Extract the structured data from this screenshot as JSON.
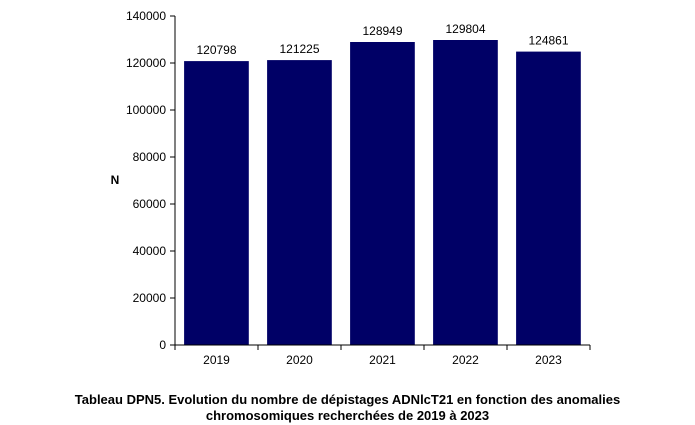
{
  "chart_data": {
    "type": "bar",
    "categories": [
      "2019",
      "2020",
      "2021",
      "2022",
      "2023"
    ],
    "values": [
      120798,
      121225,
      128949,
      129804,
      124861
    ],
    "data_labels": [
      "120798",
      "121225",
      "128949",
      "129804",
      "124861"
    ],
    "ylabel": "N",
    "xlabel": "",
    "ylim": [
      0,
      140000
    ],
    "yticks": [
      0,
      20000,
      40000,
      60000,
      80000,
      100000,
      120000,
      140000
    ],
    "ytick_labels": [
      "0",
      "20000",
      "40000",
      "60000",
      "80000",
      "100000",
      "120000",
      "140000"
    ],
    "grid": false,
    "bar_color": "#000066"
  },
  "caption": {
    "line1": "Tableau DPN5. Evolution du nombre de dépistages ADNlcT21 en fonction des anomalies",
    "line2": "chromosomiques recherchées de 2019 à 2023"
  }
}
